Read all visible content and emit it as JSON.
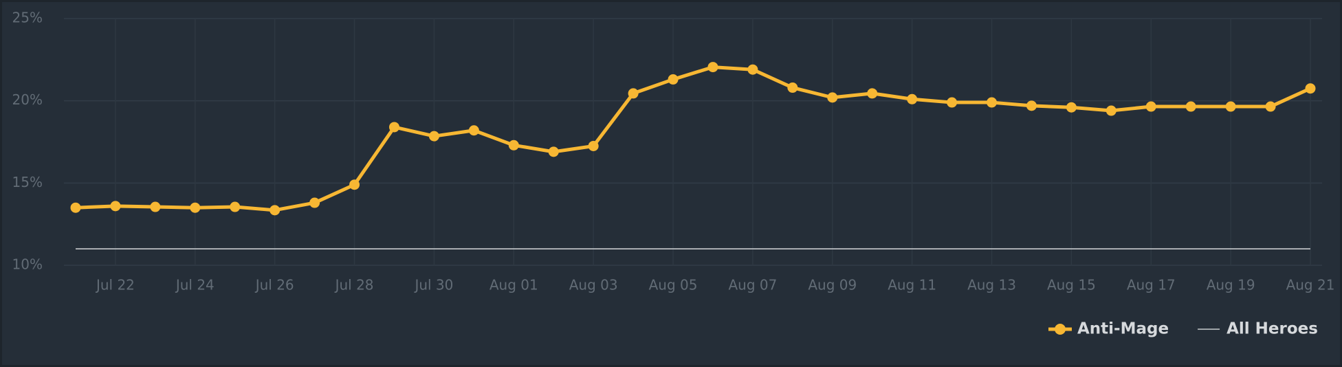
{
  "chart_data": {
    "type": "line",
    "categories": [
      null,
      "Jul 22",
      null,
      "Jul 24",
      null,
      "Jul 26",
      null,
      "Jul 28",
      null,
      "Jul 30",
      null,
      "Aug 01",
      null,
      "Aug 03",
      null,
      "Aug 05",
      null,
      "Aug 07",
      null,
      "Aug 09",
      null,
      "Aug 11",
      null,
      "Aug 13",
      null,
      "Aug 15",
      null,
      "Aug 17",
      null,
      "Aug 19",
      null,
      "Aug 21"
    ],
    "series": [
      {
        "name": "Anti-Mage",
        "color": "#f7b733",
        "values": [
          13.5,
          13.6,
          13.55,
          13.5,
          13.55,
          13.35,
          13.8,
          14.9,
          18.4,
          17.85,
          18.2,
          17.3,
          16.9,
          17.25,
          20.45,
          21.3,
          22.05,
          21.9,
          20.8,
          20.2,
          20.45,
          20.1,
          19.9,
          19.9,
          19.7,
          19.6,
          19.4,
          19.65,
          19.65,
          19.65,
          19.65,
          20.75
        ]
      },
      {
        "name": "All Heroes",
        "color": "#c8cbce",
        "values": [
          11,
          11,
          11,
          11,
          11,
          11,
          11,
          11,
          11,
          11,
          11,
          11,
          11,
          11,
          11,
          11,
          11,
          11,
          11,
          11,
          11,
          11,
          11,
          11,
          11,
          11,
          11,
          11,
          11,
          11,
          11,
          11
        ]
      }
    ],
    "ylim": [
      10,
      25
    ],
    "yticks": [
      {
        "value": 10,
        "label": "10%"
      },
      {
        "value": 15,
        "label": "15%"
      },
      {
        "value": 20,
        "label": "20%"
      },
      {
        "value": 25,
        "label": "25%"
      }
    ],
    "grid": true
  }
}
